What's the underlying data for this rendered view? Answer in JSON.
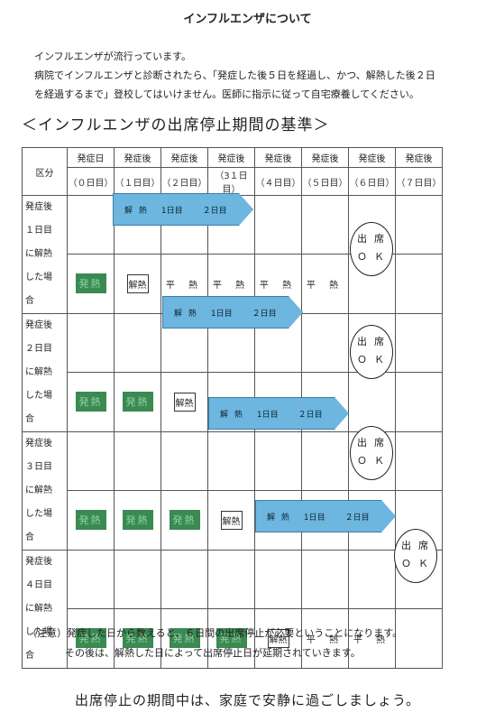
{
  "title": "インフルエンザについて",
  "intro": {
    "line1": "インフルエンザが流行っています。",
    "line2": "病院でインフルエンザと診断されたら、「発症した後５日を経過し、かつ、解熱した後２日",
    "line3": "を経過するまで」登校してはいけません。医師に指示に従って自宅療養してください。"
  },
  "subtitle": "＜インフルエンザの出席停止期間の基準＞",
  "table": {
    "corner": "区分",
    "headers": [
      "発症日",
      "発症後",
      "発症後",
      "発症後",
      "発症後",
      "発症後",
      "発症後",
      "発症後"
    ],
    "subheaders": [
      "（０日目）",
      "（１日目）",
      "（２日目）",
      "（3１日目）",
      "（４日目）",
      "（５日目）",
      "（６日目）",
      "（７日目）"
    ],
    "sections": [
      {
        "l1": "発症後",
        "l2": "１日目",
        "l3": "に解熱",
        "l4": "した場",
        "l5": "合"
      },
      {
        "l1": "発症後",
        "l2": "２日目",
        "l3": "に解熱",
        "l4": "した場",
        "l5": "合"
      },
      {
        "l1": "発症後",
        "l2": "３日目",
        "l3": "に解熱",
        "l4": "した場",
        "l5": "合"
      },
      {
        "l1": "発症後",
        "l2": "４日目",
        "l3": "に解熱",
        "l4": "した場",
        "l5": "合"
      }
    ],
    "fever": "発熱",
    "resolved": "解熱",
    "normal": "平 熱",
    "arrow": {
      "label": "解 熱",
      "day1": "1日目",
      "day2": "２日目"
    },
    "ok": {
      "line1": "出席",
      "line2": "ＯＫ"
    }
  },
  "note": {
    "line1": "（注意）発症した日から数えると、６日間の出席停止が必要ということになります。",
    "line2": "その後は、解熱した日によって出席停止日が延期されていきます。"
  },
  "closing": "出席停止の期間中は、家庭で安静に過ごしましょう。"
}
